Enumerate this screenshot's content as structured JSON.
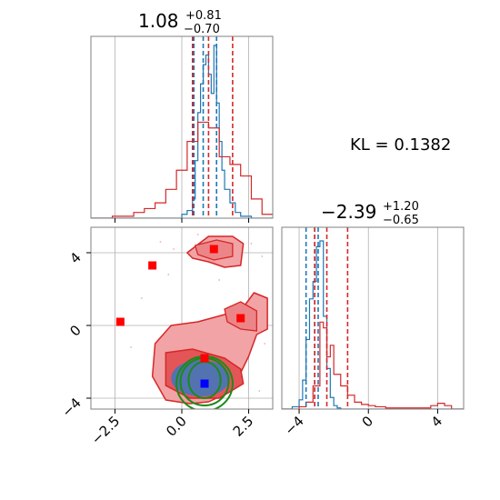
{
  "chart_data": [
    {
      "type": "histogram",
      "panel": "marginal-x",
      "title_value": "1.08",
      "title_plus": "+0.81",
      "title_minus": "−0.70",
      "xlim": [
        -3.4,
        3.4
      ],
      "grid": true,
      "series": [
        {
          "color": "#1f77b4",
          "bin_edges": [
            -3.4,
            -3.0,
            -2.6,
            -2.2,
            -1.8,
            -1.4,
            -1.0,
            -0.6,
            -0.2,
            0.0,
            0.2,
            0.4,
            0.5,
            0.6,
            0.7,
            0.8,
            0.9,
            1.0,
            1.1,
            1.2,
            1.3,
            1.4,
            1.5,
            1.6,
            1.8,
            2.0,
            2.2,
            2.6,
            3.0,
            3.4
          ],
          "counts": [
            0,
            0,
            0,
            0,
            0,
            0,
            0,
            0,
            0,
            2,
            4,
            10,
            30,
            55,
            70,
            80,
            85,
            75,
            65,
            90,
            60,
            40,
            25,
            15,
            8,
            3,
            1,
            0,
            0
          ]
        },
        {
          "color": "#d62728",
          "bin_edges": [
            -3.4,
            -3.0,
            -2.6,
            -2.2,
            -1.8,
            -1.4,
            -1.0,
            -0.6,
            -0.2,
            0.2,
            0.6,
            1.0,
            1.4,
            1.8,
            2.2,
            2.6,
            3.0,
            3.4
          ],
          "counts": [
            0,
            0,
            1,
            1,
            3,
            5,
            8,
            15,
            25,
            40,
            50,
            47,
            32,
            28,
            22,
            10,
            2
          ]
        }
      ],
      "quantile_lines": [
        {
          "color": "#1f77b4",
          "x": [
            0.45,
            0.8,
            1.3
          ]
        },
        {
          "color": "#d62728",
          "x": [
            0.4,
            1.0,
            1.9
          ]
        }
      ]
    },
    {
      "type": "contour",
      "panel": "2d",
      "xlim": [
        -3.4,
        3.4
      ],
      "ylim": [
        -4.6,
        5.4
      ],
      "xticks": [
        "−2.5",
        "0.0",
        "2.5"
      ],
      "yticks": [
        "−4",
        "0",
        "4"
      ],
      "grid": true,
      "red_regions": [
        {
          "x": [
            -1.0,
            -0.4,
            0.6,
            1.6,
            2.3,
            2.7,
            3.2,
            3.2,
            2.8,
            2.5,
            2.2,
            1.6,
            1.0,
            0.3,
            -0.6,
            -1.1
          ],
          "y": [
            -1.0,
            0.0,
            0.2,
            0.6,
            1.0,
            1.8,
            1.5,
            -0.2,
            -0.5,
            -1.7,
            -2.6,
            -3.8,
            -4.2,
            -4.3,
            -4.1,
            -2.8
          ]
        },
        {
          "x": [
            0.2,
            1.0,
            1.9,
            2.3,
            2.2,
            1.6,
            1.0,
            0.4
          ],
          "y": [
            4.0,
            4.9,
            4.9,
            4.5,
            3.3,
            3.2,
            3.5,
            3.7
          ]
        }
      ],
      "red_points": [
        [
          -2.3,
          0.2
        ],
        [
          -1.1,
          3.3
        ],
        [
          1.2,
          4.2
        ],
        [
          2.2,
          0.4
        ],
        [
          0.85,
          -1.8
        ]
      ],
      "blue_point": [
        0.85,
        -3.2
      ],
      "green_contours": [
        {
          "cx": 0.85,
          "cy": -3.0,
          "rx": 0.6,
          "ry": 1.0
        },
        {
          "cx": 0.85,
          "cy": -3.1,
          "rx": 0.9,
          "ry": 1.3
        },
        {
          "cx": 0.85,
          "cy": -3.2,
          "rx": 1.05,
          "ry": 1.5
        }
      ]
    },
    {
      "type": "histogram",
      "panel": "marginal-y",
      "title_value": "−2.39",
      "title_plus": "+1.20",
      "title_minus": "−0.65",
      "xlim": [
        -5.0,
        5.5
      ],
      "xticks": [
        "−4",
        "0",
        "4"
      ],
      "grid": true,
      "series": [
        {
          "color": "#1f77b4",
          "bin_edges": [
            -5.0,
            -4.4,
            -4.0,
            -3.8,
            -3.6,
            -3.4,
            -3.2,
            -3.0,
            -2.8,
            -2.6,
            -2.4,
            -2.2,
            -2.0,
            -1.8,
            -1.6,
            -1.4,
            -1.0,
            5.5
          ],
          "counts": [
            0,
            2,
            8,
            25,
            60,
            95,
            110,
            140,
            145,
            80,
            35,
            10,
            3,
            1,
            0,
            0,
            0
          ]
        },
        {
          "color": "#d62728",
          "bin_edges": [
            -5.0,
            -4.0,
            -3.6,
            -3.2,
            -2.8,
            -2.6,
            -2.4,
            -2.2,
            -2.0,
            -1.6,
            -1.2,
            -0.8,
            -0.4,
            0.0,
            0.4,
            1.0,
            2.0,
            3.0,
            3.6,
            4.0,
            4.4,
            4.8,
            5.5
          ],
          "counts": [
            0,
            2,
            6,
            20,
            75,
            70,
            45,
            55,
            30,
            20,
            12,
            6,
            4,
            3,
            2,
            1,
            1,
            1,
            3,
            5,
            3,
            0
          ]
        }
      ],
      "quantile_lines": [
        {
          "color": "#1f77b4",
          "x": [
            -3.6,
            -3.1,
            -2.9
          ]
        },
        {
          "color": "#d62728",
          "x": [
            -3.1,
            -2.4,
            -1.2
          ]
        }
      ]
    }
  ],
  "kl_label": "KL = 0.1382"
}
